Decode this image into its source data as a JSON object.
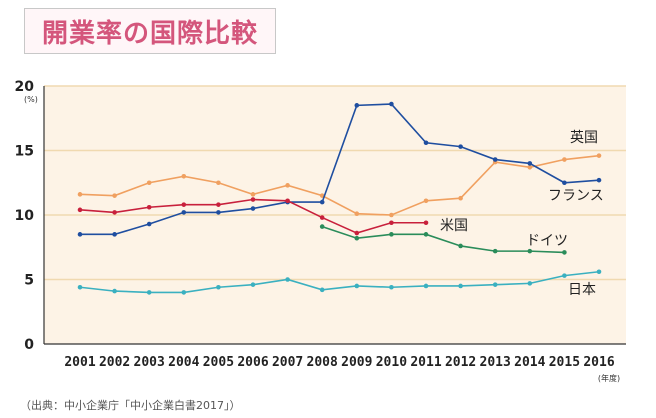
{
  "title": "開業率の国際比較",
  "source": "（出典：中小企業庁「中小企業白書2017」）",
  "chart_data": {
    "type": "line",
    "title": "開業率の国際比較",
    "ylabel": "(%)",
    "xlabel": "(年度)",
    "ylim": [
      0,
      20
    ],
    "yticks": [
      0,
      5,
      10,
      15,
      20
    ],
    "grid": true,
    "x": [
      "2001",
      "2002",
      "2003",
      "2004",
      "2005",
      "2006",
      "2007",
      "2008",
      "2009",
      "2010",
      "2011",
      "2012",
      "2013",
      "2014",
      "2015",
      "2016"
    ],
    "series": [
      {
        "name": "英国",
        "color": "#f0a060",
        "values": [
          11.6,
          11.5,
          12.5,
          13.0,
          12.5,
          11.6,
          12.3,
          11.5,
          10.1,
          10.0,
          11.1,
          11.3,
          14.1,
          13.7,
          14.3,
          14.6
        ]
      },
      {
        "name": "フランス",
        "color": "#1f4ea0",
        "values": [
          8.5,
          8.5,
          9.3,
          10.2,
          10.2,
          10.5,
          11.0,
          11.0,
          18.5,
          18.6,
          15.6,
          15.3,
          14.3,
          14.0,
          12.5,
          12.7
        ]
      },
      {
        "name": "米国",
        "color": "#c8203c",
        "values": [
          10.4,
          10.2,
          10.6,
          10.8,
          10.8,
          11.2,
          11.1,
          9.8,
          8.6,
          9.4,
          9.4,
          null,
          null,
          null,
          null,
          null
        ]
      },
      {
        "name": "ドイツ",
        "color": "#2a8c5a",
        "values": [
          null,
          null,
          null,
          null,
          null,
          null,
          null,
          9.1,
          8.2,
          8.5,
          8.5,
          7.6,
          7.2,
          7.2,
          7.1,
          null
        ]
      },
      {
        "name": "日本",
        "color": "#3ab0c0",
        "values": [
          4.4,
          4.1,
          4.0,
          4.0,
          4.4,
          4.6,
          5.0,
          4.2,
          4.5,
          4.4,
          4.5,
          4.5,
          4.6,
          4.7,
          5.3,
          5.6
        ]
      }
    ]
  }
}
